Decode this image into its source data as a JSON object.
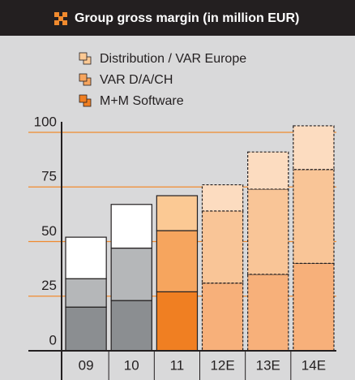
{
  "chart_data": {
    "type": "stacked_bar",
    "title": "Group gross margin (in million EUR)",
    "categories": [
      "09",
      "10",
      "11",
      "12E",
      "13E",
      "14E"
    ],
    "series": [
      {
        "name": "M+M Software",
        "color": "#f07f22",
        "values": [
          20,
          23,
          27,
          31,
          35,
          40
        ],
        "colors": [
          "#8b8e91",
          "#8b8e91",
          "#f07f22",
          "#f7b07a",
          "#f7b07a",
          "#f7b07a"
        ]
      },
      {
        "name": "VAR D/A/CH",
        "color": "#f6a55e",
        "values": [
          13,
          24,
          28,
          33,
          39,
          43
        ],
        "colors": [
          "#b5b7b9",
          "#b5b7b9",
          "#f6a55e",
          "#f9c597",
          "#f9c597",
          "#f9c597"
        ]
      },
      {
        "name": "Distribution / VAR Europe",
        "color": "#fbc994",
        "values": [
          19,
          20,
          16,
          12,
          17,
          20
        ],
        "colors": [
          "#ffffff",
          "#ffffff",
          "#fbc994",
          "#fcdcc0",
          "#fcdcc0",
          "#fcdcc0"
        ]
      }
    ],
    "border_style": [
      "solid",
      "solid",
      "solid",
      "dashed",
      "dashed",
      "dashed"
    ],
    "ylim": [
      0,
      100
    ],
    "yticks": [
      0,
      25,
      50,
      75,
      100
    ],
    "grid": true,
    "grid_color": "#f08a2e",
    "legend": "top-left"
  }
}
